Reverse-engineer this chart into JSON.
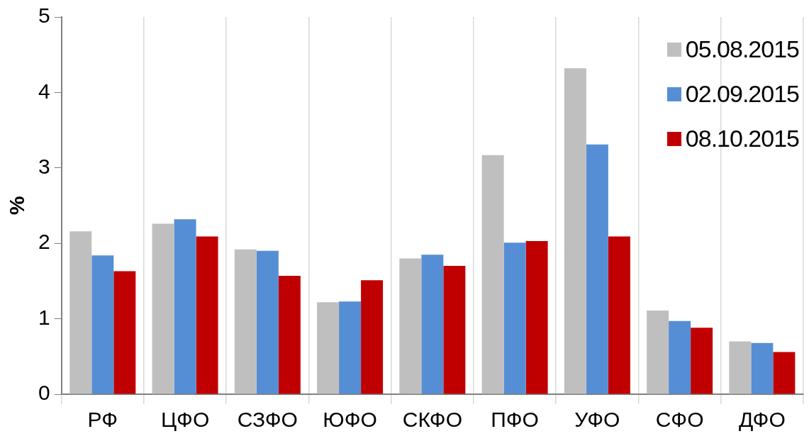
{
  "chart_data": {
    "type": "bar",
    "ylabel": "%",
    "categories": [
      "РФ",
      "ЦФО",
      "СЗФО",
      "ЮФО",
      "СКФО",
      "ПФО",
      "УФО",
      "СФО",
      "ДФО"
    ],
    "series": [
      {
        "name": "05.08.2015",
        "color": "#bfbfbf",
        "values": [
          2.16,
          2.26,
          1.92,
          1.22,
          1.8,
          3.17,
          4.32,
          1.11,
          0.7
        ]
      },
      {
        "name": "02.09.2015",
        "color": "#558ed5",
        "values": [
          1.84,
          2.32,
          1.9,
          1.23,
          1.85,
          2.01,
          3.31,
          0.97,
          0.68
        ]
      },
      {
        "name": "08.10.2015",
        "color": "#c00000",
        "values": [
          1.63,
          2.09,
          1.57,
          1.51,
          1.7,
          2.03,
          2.09,
          0.88,
          0.56
        ]
      }
    ],
    "ylim": [
      0,
      5
    ],
    "yticks": [
      0,
      1,
      2,
      3,
      4,
      5
    ],
    "grid": "x",
    "legend": "top right"
  }
}
